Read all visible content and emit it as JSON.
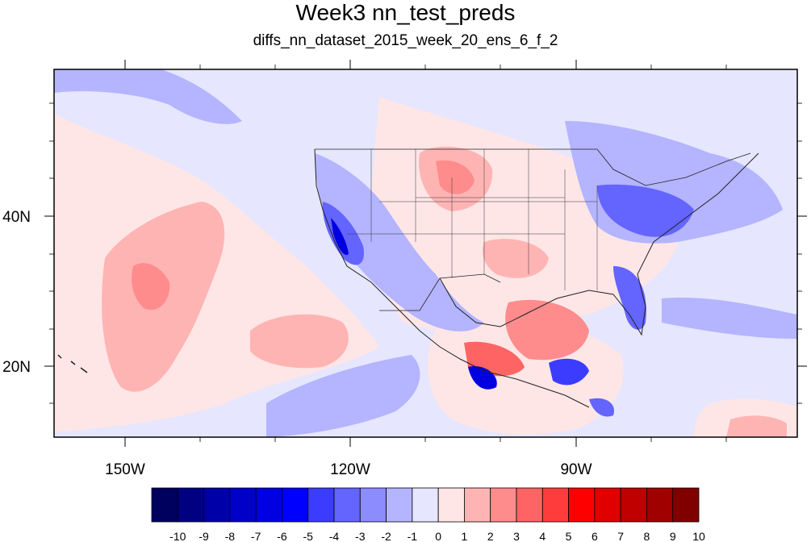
{
  "title": "Week3 nn_test_preds",
  "subtitle": "diffs_nn_dataset_2015_week_20_ens_6_f_2",
  "map": {
    "lon_labels": [
      "150W",
      "120W",
      "90W"
    ],
    "lat_labels": [
      "40N",
      "20N"
    ]
  },
  "colorbar": {
    "labels": [
      "-10",
      "-9",
      "-8",
      "-7",
      "-6",
      "-5",
      "-4",
      "-3",
      "-2",
      "-1",
      "0",
      "1",
      "2",
      "3",
      "4",
      "5",
      "6",
      "7",
      "8",
      "9",
      "10"
    ],
    "colors": [
      "#00005f",
      "#000080",
      "#0000a8",
      "#0000c8",
      "#0000e0",
      "#0000ff",
      "#3c3cff",
      "#6464ff",
      "#8c8cff",
      "#b4b4ff",
      "#e6e6ff",
      "#ffe6e6",
      "#ffb4b4",
      "#ff8c8c",
      "#ff6464",
      "#ff3c3c",
      "#ff0000",
      "#e00000",
      "#c00000",
      "#a00000",
      "#800000"
    ]
  }
}
